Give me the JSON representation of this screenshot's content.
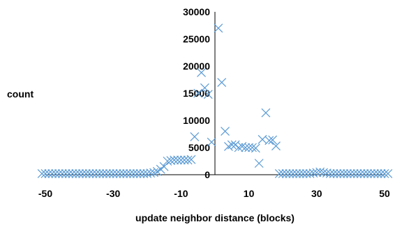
{
  "chart_data": {
    "type": "scatter",
    "title": "",
    "xlabel": "update neighbor distance (blocks)",
    "ylabel": "count",
    "xlim": [
      -50,
      50
    ],
    "ylim": [
      0,
      30000
    ],
    "x_ticks": [
      -50,
      -30,
      -10,
      10,
      30,
      50
    ],
    "y_ticks": [
      0,
      5000,
      10000,
      15000,
      20000,
      25000,
      30000
    ],
    "grid": false,
    "legend": "none",
    "marker": "x",
    "marker_color": "#5b9bd5",
    "series": [
      {
        "x": [
          -51,
          -50,
          -49,
          -48,
          -47,
          -46,
          -45,
          -44,
          -43,
          -42,
          -41,
          -40,
          -39,
          -38,
          -37,
          -36,
          -35,
          -34,
          -33,
          -32,
          -31,
          -30,
          -29,
          -28,
          -27,
          -26,
          -25,
          -24,
          -23,
          -22,
          -21,
          -20,
          -19,
          -18,
          -17,
          -16,
          -15,
          -14,
          -13,
          -12,
          -11,
          -10,
          -9,
          -8,
          -7,
          -6,
          -5,
          -4,
          -3,
          -2,
          -1,
          0,
          1,
          2,
          3,
          4,
          5,
          6,
          7,
          8,
          9,
          10,
          11,
          12,
          13,
          14,
          15,
          16,
          17,
          18,
          19,
          20,
          21,
          22,
          23,
          24,
          25,
          26,
          27,
          28,
          29,
          30,
          31,
          32,
          33,
          34,
          35,
          36,
          37,
          38,
          39,
          40,
          41,
          42,
          43,
          44,
          45,
          46,
          47,
          48,
          49,
          50,
          51
        ],
        "y": [
          200,
          200,
          200,
          200,
          200,
          200,
          200,
          200,
          200,
          200,
          200,
          200,
          200,
          200,
          200,
          200,
          200,
          200,
          200,
          200,
          200,
          200,
          200,
          200,
          200,
          200,
          200,
          200,
          200,
          200,
          200,
          200,
          300,
          400,
          600,
          1000,
          1500,
          2500,
          2600,
          2700,
          2700,
          2700,
          2700,
          2700,
          2800,
          7000,
          15000,
          18800,
          16000,
          14800,
          6000,
          null,
          27000,
          17000,
          8000,
          5200,
          5500,
          5500,
          5000,
          5200,
          5000,
          5000,
          5000,
          4900,
          2100,
          6500,
          11400,
          6300,
          6400,
          5300,
          200,
          200,
          200,
          200,
          200,
          200,
          200,
          200,
          200,
          200,
          300,
          400,
          500,
          400,
          300,
          200,
          200,
          200,
          200,
          200,
          200,
          200,
          200,
          200,
          200,
          200,
          200,
          200,
          200,
          200,
          200,
          200,
          200
        ]
      }
    ]
  }
}
